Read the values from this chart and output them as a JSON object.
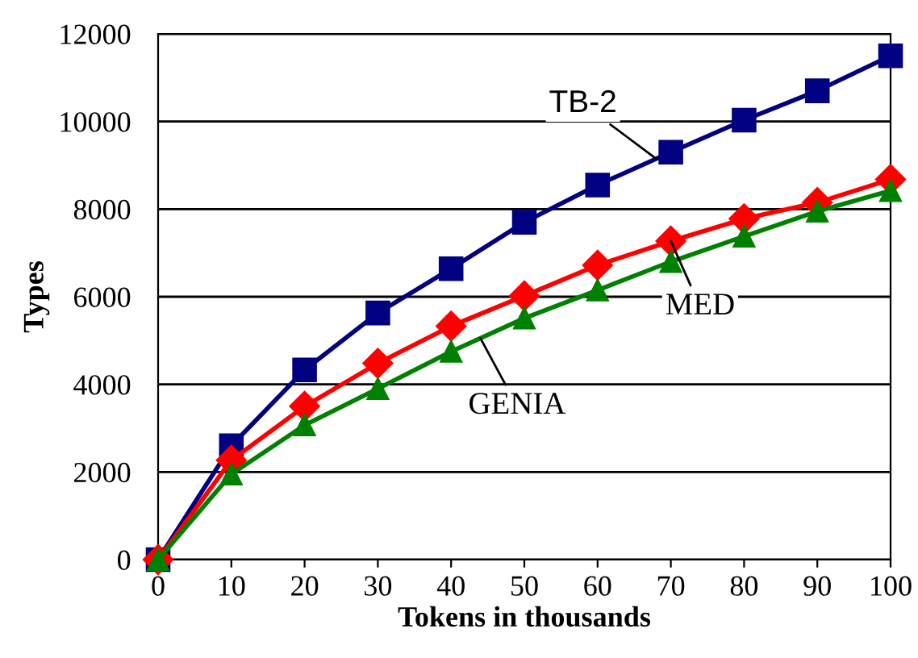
{
  "chart_data": {
    "type": "line",
    "xlabel": "Tokens in thousands",
    "ylabel": "Types",
    "x": [
      0,
      10,
      20,
      30,
      40,
      50,
      60,
      70,
      80,
      90,
      100
    ],
    "series": [
      {
        "name": "TB-2",
        "color": "#000080",
        "marker": "square",
        "values": [
          0,
          2600,
          4330,
          5630,
          6640,
          7700,
          8550,
          9300,
          10030,
          10700,
          11500
        ]
      },
      {
        "name": "MED",
        "color": "#ff0000",
        "marker": "diamond",
        "values": [
          0,
          2270,
          3500,
          4480,
          5330,
          6020,
          6720,
          7270,
          7780,
          8150,
          8680
        ]
      },
      {
        "name": "GENIA",
        "color": "#008000",
        "marker": "triangle",
        "values": [
          0,
          1950,
          3070,
          3900,
          4750,
          5510,
          6150,
          6800,
          7380,
          7950,
          8420
        ]
      }
    ],
    "xlim": [
      0,
      100
    ],
    "xticks": [
      0,
      10,
      20,
      30,
      40,
      50,
      60,
      70,
      80,
      90,
      100
    ],
    "ylim": [
      0,
      12000
    ],
    "yticks": [
      0,
      2000,
      4000,
      6000,
      8000,
      10000,
      12000
    ],
    "grid": "y",
    "legend": false,
    "line_style": "solid"
  }
}
